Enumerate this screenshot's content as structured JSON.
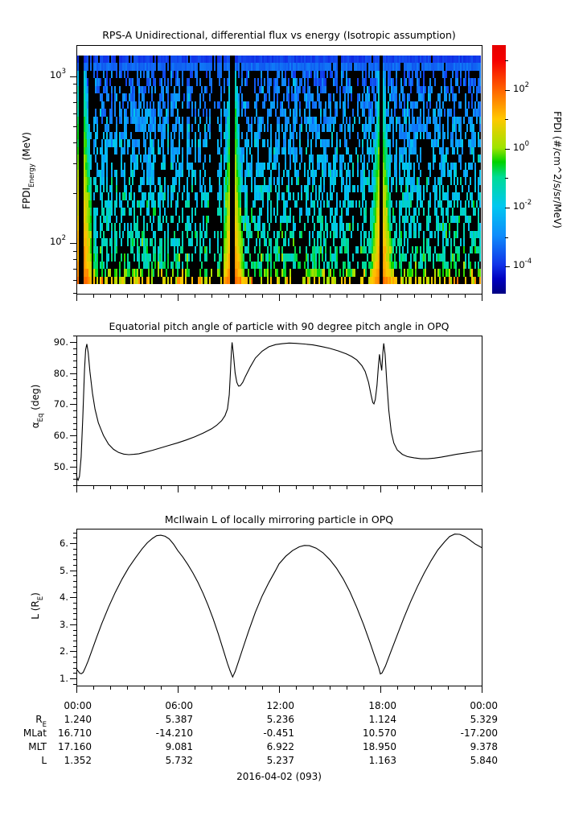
{
  "page": {
    "background": "#ffffff",
    "date_label": "2016-04-02 (093)"
  },
  "panels": {
    "spectrogram": {
      "title": "RPS-A Unidirectional, differential flux vs energy (Isotropic assumption)",
      "ylabel": {
        "main": "FPDI",
        "sub": "Energy",
        "unit": " (MeV)"
      },
      "yticks_major": [
        {
          "base": "10",
          "exp": "3",
          "value": 1000
        },
        {
          "base": "10",
          "exp": "2",
          "value": 100
        }
      ],
      "yticks_minor": [
        50,
        60,
        70,
        80,
        90,
        200,
        300,
        400,
        500,
        600,
        700,
        800,
        900
      ],
      "yrange_log10_mev": [
        1.696,
        3.188
      ]
    },
    "colorbar": {
      "label": "FPDI (#/cm^2/s/sr/MeV)",
      "ticks_major": [
        {
          "base": "10",
          "exp": "2",
          "value": 2
        },
        {
          "base": "10",
          "exp": "0",
          "value": 0
        },
        {
          "base": "10",
          "exp": "-2",
          "value": -2
        },
        {
          "base": "10",
          "exp": "-4",
          "value": -4
        }
      ],
      "ticks_minor_log10": [
        3,
        1,
        -1,
        -3
      ],
      "range_log10": [
        -4.93,
        3.53
      ],
      "palette": [
        [
          0.0,
          "#000082"
        ],
        [
          0.06,
          "#0000c0"
        ],
        [
          0.117,
          "#1133e8"
        ],
        [
          0.234,
          "#0f8cfb"
        ],
        [
          0.352,
          "#00c8f0"
        ],
        [
          0.469,
          "#00dc96"
        ],
        [
          0.53,
          "#00d200"
        ],
        [
          0.586,
          "#9ce400"
        ],
        [
          0.703,
          "#ffc800"
        ],
        [
          0.82,
          "#ff6400"
        ],
        [
          0.938,
          "#f50000"
        ],
        [
          1.0,
          "#e60000"
        ]
      ]
    },
    "alpha": {
      "title": "Equatorial pitch angle of particle with 90 degree pitch angle in OPQ",
      "ylabel": {
        "main": "α",
        "sub": "Eq",
        "unit": " (deg)"
      },
      "yticks": [
        {
          "label": "90.",
          "value": 90
        },
        {
          "label": "80.",
          "value": 80
        },
        {
          "label": "70.",
          "value": 70
        },
        {
          "label": "60.",
          "value": 60
        },
        {
          "label": "50.",
          "value": 50
        }
      ],
      "yminor_step": 2,
      "yrange": [
        44,
        92
      ]
    },
    "mcilwain": {
      "title": "McIlwain L of locally mirroring particle in OPQ",
      "ylabel": {
        "main": "L (R",
        "sub": "E",
        "unit": ")"
      },
      "yticks": [
        {
          "label": "6.",
          "value": 6
        },
        {
          "label": "5.",
          "value": 5
        },
        {
          "label": "4.",
          "value": 4
        },
        {
          "label": "3.",
          "value": 3
        },
        {
          "label": "2.",
          "value": 2
        },
        {
          "label": "1.",
          "value": 1
        }
      ],
      "yminor_step": 0.2,
      "yrange": [
        0.73,
        6.54
      ]
    }
  },
  "xaxis": {
    "tick_labels": [
      "00:00",
      "06:00",
      "12:00",
      "18:00",
      "00:00"
    ],
    "major_hours": [
      0,
      6,
      12,
      18,
      24
    ],
    "minor_step_hours": 1,
    "range_hours": [
      0,
      24
    ]
  },
  "ephemeris_table": {
    "rows": [
      {
        "label": "R",
        "sub": "E",
        "values": [
          "1.240",
          "5.387",
          "5.236",
          "1.124",
          "5.329"
        ]
      },
      {
        "label": "MLat",
        "sub": "",
        "values": [
          "16.710",
          "-14.210",
          "-0.451",
          "10.570",
          "-17.200"
        ]
      },
      {
        "label": "MLT",
        "sub": "",
        "values": [
          "17.160",
          "9.081",
          "6.922",
          "18.950",
          "9.378"
        ]
      },
      {
        "label": "L",
        "sub": "",
        "values": [
          "1.352",
          "5.732",
          "5.237",
          "1.163",
          "5.840"
        ]
      }
    ]
  },
  "chart_data": [
    {
      "type": "heatmap",
      "title": "RPS-A Unidirectional, differential flux vs energy (Isotropic assumption)",
      "x_range_hours": [
        0,
        24
      ],
      "ylabel": "FPDI_Energy (MeV)",
      "y_range_mev": [
        50,
        1540
      ],
      "y_scale": "log",
      "zlabel": "FPDI (#/cm^2/s/sr/MeV)",
      "z_range": [
        1e-05,
        3000
      ],
      "z_scale": "log",
      "perigee_hours": [
        0.27,
        9.25,
        18.0
      ],
      "structure": "Speckled low-flux background of cyan/blue cells with ~40% black dropouts; flux falls with energy (~1e-1 at 60 MeV to ~1e-4 near 1000 MeV); solid royal-blue band above ~1100 MeV; bright inner-belt wedges (green to yellow/orange at low energy, up to ~1e2) around each perigee pass, widening toward low energy, each split by a narrow black data-gap column at perigee.",
      "model": {
        "columns": 251,
        "rows": 30,
        "top_band_rows": 2,
        "top_band_logflux": [
          -3.8,
          -3.35
        ],
        "bg_logflux_at_logE2": -1.35,
        "bg_slope_per_decade": -2.1,
        "bottom_row_bonus": [
          0.7,
          1.5
        ],
        "wedge_center_logflux_at_base": 2.1,
        "wedge_slope_per_decade": -2.0,
        "L_cut_at_base": 2.5,
        "L_cut_slope": -0.8,
        "base_logE": 1.754,
        "perigee_gap_L": 1.25,
        "black_fraction_bg": 0.42,
        "black_fraction_topband": 0.05,
        "col_dropout_prob": 0.16,
        "col_dropout_factor": 2.3,
        "full_black_col_prob": 0.03,
        "noise_log": 0.55,
        "bright_cell_prob": 0.12,
        "bright_cell_bonus": 0.85,
        "seed": 1234
      }
    },
    {
      "type": "line",
      "name": "equatorial_pitch_angle_deg",
      "x": "hours",
      "y": "alpha_eq (deg)",
      "points": [
        [
          0,
          47.5
        ],
        [
          0.05,
          46.2
        ],
        [
          0.1,
          45.6
        ],
        [
          0.18,
          46.8
        ],
        [
          0.28,
          53
        ],
        [
          0.38,
          66
        ],
        [
          0.48,
          81
        ],
        [
          0.55,
          87.5
        ],
        [
          0.62,
          89.3
        ],
        [
          0.7,
          86.5
        ],
        [
          0.8,
          80.5
        ],
        [
          0.95,
          73.5
        ],
        [
          1.1,
          68.5
        ],
        [
          1.3,
          64
        ],
        [
          1.6,
          60
        ],
        [
          1.9,
          57.2
        ],
        [
          2.2,
          55.5
        ],
        [
          2.5,
          54.5
        ],
        [
          2.8,
          54
        ],
        [
          3.1,
          53.8
        ],
        [
          3.4,
          53.9
        ],
        [
          3.7,
          54.1
        ],
        [
          4,
          54.5
        ],
        [
          4.5,
          55.2
        ],
        [
          5,
          56
        ],
        [
          5.5,
          56.8
        ],
        [
          6,
          57.6
        ],
        [
          6.5,
          58.5
        ],
        [
          7,
          59.5
        ],
        [
          7.5,
          60.7
        ],
        [
          8,
          62.1
        ],
        [
          8.3,
          63.2
        ],
        [
          8.6,
          64.7
        ],
        [
          8.8,
          66.3
        ],
        [
          8.95,
          68.5
        ],
        [
          9.05,
          73
        ],
        [
          9.12,
          80
        ],
        [
          9.18,
          87
        ],
        [
          9.22,
          89.8
        ],
        [
          9.3,
          86
        ],
        [
          9.4,
          80
        ],
        [
          9.5,
          77
        ],
        [
          9.6,
          75.8
        ],
        [
          9.7,
          75.9
        ],
        [
          9.85,
          77
        ],
        [
          10,
          78.8
        ],
        [
          10.3,
          82
        ],
        [
          10.6,
          84.8
        ],
        [
          11,
          87
        ],
        [
          11.4,
          88.4
        ],
        [
          11.8,
          89.1
        ],
        [
          12.2,
          89.4
        ],
        [
          12.6,
          89.6
        ],
        [
          13,
          89.5
        ],
        [
          13.5,
          89.3
        ],
        [
          14,
          89
        ],
        [
          14.5,
          88.5
        ],
        [
          15,
          87.9
        ],
        [
          15.5,
          87.1
        ],
        [
          16,
          86.1
        ],
        [
          16.3,
          85.3
        ],
        [
          16.6,
          84.2
        ],
        [
          16.9,
          82.4
        ],
        [
          17.1,
          80.5
        ],
        [
          17.3,
          77
        ],
        [
          17.45,
          73
        ],
        [
          17.55,
          70.5
        ],
        [
          17.62,
          70.1
        ],
        [
          17.7,
          71.5
        ],
        [
          17.8,
          76
        ],
        [
          17.88,
          82
        ],
        [
          17.95,
          86
        ],
        [
          18.02,
          83
        ],
        [
          18.08,
          80.8
        ],
        [
          18.15,
          86.5
        ],
        [
          18.2,
          89.5
        ],
        [
          18.28,
          86
        ],
        [
          18.38,
          77
        ],
        [
          18.5,
          68
        ],
        [
          18.65,
          61
        ],
        [
          18.8,
          57.5
        ],
        [
          19,
          55.3
        ],
        [
          19.3,
          53.9
        ],
        [
          19.6,
          53.2
        ],
        [
          20,
          52.8
        ],
        [
          20.4,
          52.5
        ],
        [
          20.8,
          52.5
        ],
        [
          21.2,
          52.7
        ],
        [
          21.6,
          53
        ],
        [
          22,
          53.4
        ],
        [
          22.5,
          53.9
        ],
        [
          23,
          54.3
        ],
        [
          23.5,
          54.7
        ],
        [
          24,
          55.1
        ]
      ]
    },
    {
      "type": "line",
      "name": "mcilwain_L",
      "x": "hours",
      "y": "L (Re)",
      "points": [
        [
          0,
          1.352
        ],
        [
          0.1,
          1.27
        ],
        [
          0.2,
          1.19
        ],
        [
          0.3,
          1.17
        ],
        [
          0.4,
          1.22
        ],
        [
          0.55,
          1.42
        ],
        [
          0.7,
          1.65
        ],
        [
          0.9,
          2.0
        ],
        [
          1.2,
          2.52
        ],
        [
          1.5,
          3.02
        ],
        [
          1.9,
          3.63
        ],
        [
          2.3,
          4.18
        ],
        [
          2.7,
          4.67
        ],
        [
          3.1,
          5.1
        ],
        [
          3.5,
          5.46
        ],
        [
          3.9,
          5.8
        ],
        [
          4.2,
          6.02
        ],
        [
          4.5,
          6.18
        ],
        [
          4.75,
          6.28
        ],
        [
          5,
          6.3
        ],
        [
          5.25,
          6.26
        ],
        [
          5.5,
          6.16
        ],
        [
          5.75,
          5.97
        ],
        [
          6,
          5.732
        ],
        [
          6.3,
          5.49
        ],
        [
          6.6,
          5.21
        ],
        [
          6.9,
          4.9
        ],
        [
          7.2,
          4.55
        ],
        [
          7.5,
          4.15
        ],
        [
          7.8,
          3.7
        ],
        [
          8.1,
          3.2
        ],
        [
          8.4,
          2.65
        ],
        [
          8.7,
          2.05
        ],
        [
          8.95,
          1.55
        ],
        [
          9.1,
          1.28
        ],
        [
          9.25,
          1.05
        ],
        [
          9.4,
          1.25
        ],
        [
          9.6,
          1.62
        ],
        [
          9.85,
          2.1
        ],
        [
          10.2,
          2.75
        ],
        [
          10.6,
          3.45
        ],
        [
          11,
          4.05
        ],
        [
          11.4,
          4.55
        ],
        [
          11.8,
          5.0
        ],
        [
          12,
          5.237
        ],
        [
          12.4,
          5.52
        ],
        [
          12.8,
          5.73
        ],
        [
          13.2,
          5.87
        ],
        [
          13.5,
          5.92
        ],
        [
          13.8,
          5.91
        ],
        [
          14.2,
          5.82
        ],
        [
          14.6,
          5.65
        ],
        [
          15,
          5.4
        ],
        [
          15.4,
          5.08
        ],
        [
          15.8,
          4.68
        ],
        [
          16.2,
          4.2
        ],
        [
          16.6,
          3.63
        ],
        [
          17,
          3.0
        ],
        [
          17.4,
          2.3
        ],
        [
          17.7,
          1.75
        ],
        [
          17.9,
          1.4
        ],
        [
          18,
          1.163
        ],
        [
          18.1,
          1.2
        ],
        [
          18.3,
          1.45
        ],
        [
          18.6,
          1.95
        ],
        [
          19,
          2.6
        ],
        [
          19.4,
          3.25
        ],
        [
          19.8,
          3.85
        ],
        [
          20.2,
          4.4
        ],
        [
          20.6,
          4.9
        ],
        [
          21,
          5.35
        ],
        [
          21.4,
          5.75
        ],
        [
          21.8,
          6.05
        ],
        [
          22.1,
          6.25
        ],
        [
          22.4,
          6.34
        ],
        [
          22.7,
          6.33
        ],
        [
          23,
          6.25
        ],
        [
          23.3,
          6.12
        ],
        [
          23.6,
          5.98
        ],
        [
          24,
          5.84
        ]
      ]
    }
  ]
}
